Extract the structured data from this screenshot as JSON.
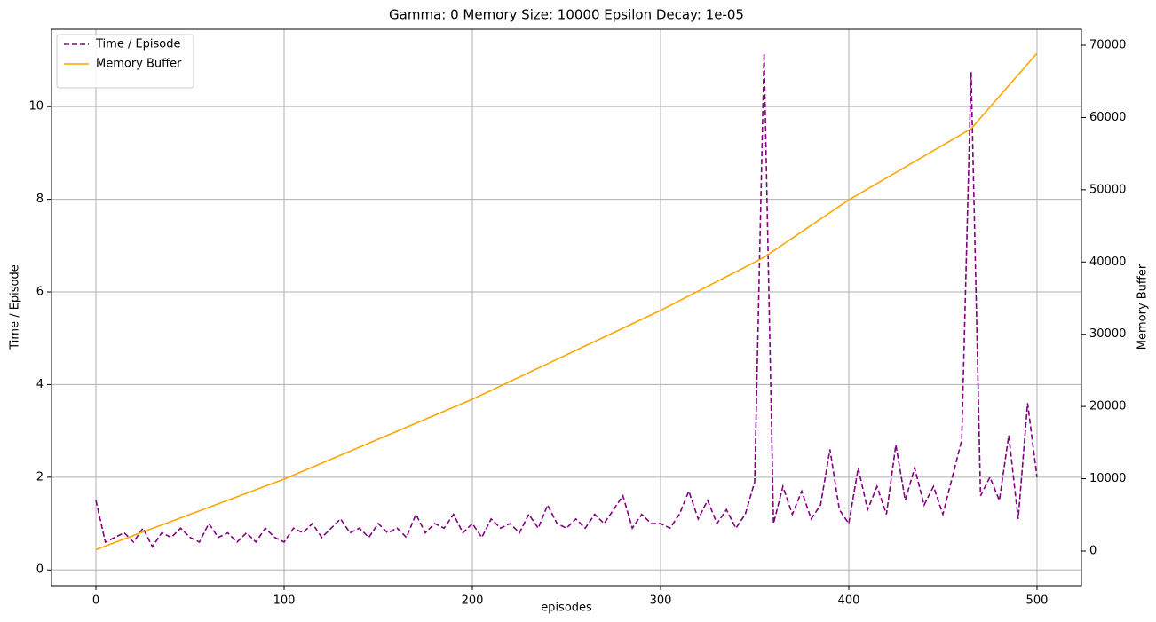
{
  "chart_data": {
    "type": "line",
    "title": "Gamma: 0    Memory Size: 10000    Epsilon Decay: 1e-05",
    "x_label": "episodes",
    "y_label": "Time / Episode",
    "y2_label": "Memory Buffer",
    "x": [
      0,
      5,
      10,
      15,
      20,
      25,
      30,
      35,
      40,
      45,
      50,
      55,
      60,
      65,
      70,
      75,
      80,
      85,
      90,
      95,
      100,
      105,
      110,
      115,
      120,
      125,
      130,
      135,
      140,
      145,
      150,
      155,
      160,
      165,
      170,
      175,
      180,
      185,
      190,
      195,
      200,
      205,
      210,
      215,
      220,
      225,
      230,
      235,
      240,
      245,
      250,
      255,
      260,
      265,
      270,
      275,
      280,
      285,
      290,
      295,
      300,
      305,
      310,
      315,
      320,
      325,
      330,
      335,
      340,
      345,
      350,
      355,
      360,
      365,
      370,
      375,
      380,
      385,
      390,
      395,
      400,
      405,
      410,
      415,
      420,
      425,
      430,
      435,
      440,
      445,
      450,
      455,
      460,
      465,
      470,
      475,
      480,
      485,
      490,
      495,
      500
    ],
    "series": [
      {
        "name": "Time / Episode",
        "color": "#800080",
        "linestyle": "dashed",
        "axis": "y",
        "values": [
          1.5,
          0.6,
          0.7,
          0.8,
          0.6,
          0.9,
          0.5,
          0.8,
          0.7,
          0.9,
          0.7,
          0.6,
          1.0,
          0.7,
          0.8,
          0.6,
          0.8,
          0.6,
          0.9,
          0.7,
          0.6,
          0.9,
          0.8,
          1.0,
          0.7,
          0.9,
          1.1,
          0.8,
          0.9,
          0.7,
          1.0,
          0.8,
          0.9,
          0.7,
          1.2,
          0.8,
          1.0,
          0.9,
          1.2,
          0.8,
          1.0,
          0.7,
          1.1,
          0.9,
          1.0,
          0.8,
          1.2,
          0.9,
          1.4,
          1.0,
          0.9,
          1.1,
          0.9,
          1.2,
          1.0,
          1.3,
          1.6,
          0.9,
          1.2,
          1.0,
          1.0,
          0.9,
          1.2,
          1.7,
          1.1,
          1.5,
          1.0,
          1.3,
          0.9,
          1.2,
          1.9,
          11.15,
          1.0,
          1.8,
          1.2,
          1.7,
          1.1,
          1.4,
          2.6,
          1.3,
          1.0,
          2.2,
          1.3,
          1.8,
          1.2,
          2.7,
          1.5,
          2.2,
          1.4,
          1.8,
          1.2,
          2.0,
          2.8,
          10.75,
          1.6,
          2.0,
          1.5,
          2.9,
          1.1,
          3.6,
          2.0
        ]
      },
      {
        "name": "Memory Buffer",
        "color": "#ffa500",
        "linestyle": "solid",
        "axis": "y2",
        "values": [
          200,
          688,
          1175,
          1663,
          2150,
          2638,
          3125,
          3613,
          4100,
          4588,
          5075,
          5563,
          6050,
          6538,
          7025,
          7513,
          8000,
          8488,
          8975,
          9463,
          9950,
          10503,
          11055,
          11608,
          12160,
          12713,
          13265,
          13818,
          14370,
          14923,
          15475,
          16028,
          16580,
          17133,
          17685,
          18238,
          18790,
          19343,
          19895,
          20448,
          21000,
          21615,
          22230,
          22845,
          23460,
          24075,
          24690,
          25305,
          25920,
          26535,
          27150,
          27765,
          28380,
          28995,
          29610,
          30225,
          30840,
          31455,
          32070,
          32685,
          33300,
          33968,
          34636,
          35305,
          35973,
          36641,
          37309,
          37977,
          38645,
          39314,
          39982,
          40650,
          41533,
          42417,
          43300,
          44183,
          45067,
          45950,
          46833,
          47717,
          48600,
          49358,
          50115,
          50873,
          51631,
          52388,
          53146,
          53904,
          54662,
          55419,
          56177,
          56935,
          57692,
          58450,
          59943,
          61436,
          62929,
          64421,
          65914,
          67407,
          68900
        ]
      }
    ],
    "xlim": [
      -23.6,
      523.6
    ],
    "xticks": [
      0,
      100,
      200,
      300,
      400,
      500
    ],
    "ylim": [
      -0.34,
      11.67
    ],
    "yticks": [
      0,
      2,
      4,
      6,
      8,
      10
    ],
    "y2lim": [
      -4790,
      72210
    ],
    "y2ticks": [
      0,
      10000,
      20000,
      30000,
      40000,
      50000,
      60000,
      70000
    ],
    "grid": true,
    "legend": "upper left"
  }
}
